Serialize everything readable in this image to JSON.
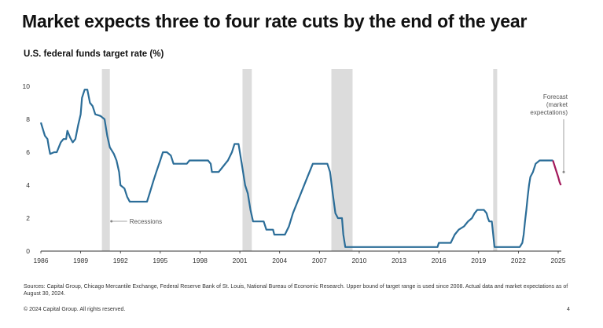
{
  "header": {
    "title": "Market expects three to four rate cuts by the end of the year",
    "subtitle": "U.S. federal funds target rate (%)"
  },
  "footer": {
    "source": "Sources: Capital Group, Chicago Mercantile Exchange, Federal Reserve Bank of St. Louis, National Bureau of Economic Research. Upper bound of target range is used since 2008. Actual data and market expectations as of August 30, 2024.",
    "copyright": "© 2024 Capital Group. All rights reserved.",
    "page_number": "4"
  },
  "colors": {
    "series_actual": "#2b6d98",
    "series_forecast": "#a3195b",
    "recession": "#dcdcdc",
    "axis": "#333333"
  },
  "chart_data": {
    "type": "line",
    "xlim": [
      1986,
      2025
    ],
    "ylim": [
      0,
      10
    ],
    "x_ticks": [
      "1986",
      "1989",
      "1992",
      "1995",
      "1998",
      "2001",
      "2004",
      "2007",
      "2010",
      "2013",
      "2016",
      "2019",
      "2022",
      "2025"
    ],
    "y_ticks": [
      "0",
      "2",
      "4",
      "6",
      "8",
      "10"
    ],
    "grid": false,
    "recessions": [
      [
        1990.6,
        1991.2
      ],
      [
        2001.2,
        2001.9
      ],
      [
        2007.9,
        2009.5
      ],
      [
        2020.1,
        2020.4
      ]
    ],
    "annotations": {
      "recessions_label": "Recessions",
      "forecast_label": "Forecast (market expectations)"
    },
    "series": [
      {
        "key": "actual",
        "points": [
          [
            1986.0,
            7.8
          ],
          [
            1986.3,
            7.0
          ],
          [
            1986.5,
            6.8
          ],
          [
            1986.6,
            6.3
          ],
          [
            1986.7,
            5.9
          ],
          [
            1987.0,
            6.0
          ],
          [
            1987.2,
            6.0
          ],
          [
            1987.5,
            6.6
          ],
          [
            1987.7,
            6.8
          ],
          [
            1987.9,
            6.8
          ],
          [
            1988.0,
            7.3
          ],
          [
            1988.2,
            6.9
          ],
          [
            1988.4,
            6.6
          ],
          [
            1988.6,
            6.8
          ],
          [
            1988.8,
            7.6
          ],
          [
            1989.0,
            8.3
          ],
          [
            1989.1,
            9.3
          ],
          [
            1989.3,
            9.8
          ],
          [
            1989.5,
            9.8
          ],
          [
            1989.7,
            9.0
          ],
          [
            1989.9,
            8.8
          ],
          [
            1990.1,
            8.3
          ],
          [
            1990.5,
            8.2
          ],
          [
            1990.8,
            8.0
          ],
          [
            1991.0,
            7.0
          ],
          [
            1991.2,
            6.3
          ],
          [
            1991.5,
            5.9
          ],
          [
            1991.7,
            5.5
          ],
          [
            1991.9,
            4.8
          ],
          [
            1992.0,
            4.0
          ],
          [
            1992.3,
            3.8
          ],
          [
            1992.5,
            3.3
          ],
          [
            1992.7,
            3.0
          ],
          [
            1994.0,
            3.0
          ],
          [
            1994.2,
            3.5
          ],
          [
            1994.5,
            4.3
          ],
          [
            1994.7,
            4.8
          ],
          [
            1995.0,
            5.5
          ],
          [
            1995.2,
            6.0
          ],
          [
            1995.5,
            6.0
          ],
          [
            1995.8,
            5.8
          ],
          [
            1996.0,
            5.3
          ],
          [
            1997.0,
            5.3
          ],
          [
            1997.2,
            5.5
          ],
          [
            1998.6,
            5.5
          ],
          [
            1998.8,
            5.3
          ],
          [
            1998.9,
            4.8
          ],
          [
            1999.4,
            4.8
          ],
          [
            1999.6,
            5.0
          ],
          [
            1999.9,
            5.3
          ],
          [
            2000.1,
            5.5
          ],
          [
            2000.4,
            6.0
          ],
          [
            2000.6,
            6.5
          ],
          [
            2000.9,
            6.5
          ],
          [
            2001.0,
            6.0
          ],
          [
            2001.2,
            5.0
          ],
          [
            2001.4,
            4.0
          ],
          [
            2001.6,
            3.5
          ],
          [
            2001.8,
            2.5
          ],
          [
            2002.0,
            1.8
          ],
          [
            2002.8,
            1.8
          ],
          [
            2003.0,
            1.3
          ],
          [
            2003.5,
            1.3
          ],
          [
            2003.6,
            1.0
          ],
          [
            2004.4,
            1.0
          ],
          [
            2004.7,
            1.5
          ],
          [
            2005.0,
            2.3
          ],
          [
            2005.5,
            3.3
          ],
          [
            2006.0,
            4.3
          ],
          [
            2006.5,
            5.3
          ],
          [
            2007.6,
            5.3
          ],
          [
            2007.8,
            4.8
          ],
          [
            2008.0,
            3.5
          ],
          [
            2008.2,
            2.3
          ],
          [
            2008.4,
            2.0
          ],
          [
            2008.7,
            2.0
          ],
          [
            2008.8,
            1.0
          ],
          [
            2008.95,
            0.25
          ],
          [
            2015.9,
            0.25
          ],
          [
            2016.0,
            0.5
          ],
          [
            2016.9,
            0.5
          ],
          [
            2017.2,
            1.0
          ],
          [
            2017.5,
            1.3
          ],
          [
            2017.9,
            1.5
          ],
          [
            2018.2,
            1.8
          ],
          [
            2018.5,
            2.0
          ],
          [
            2018.7,
            2.3
          ],
          [
            2018.9,
            2.5
          ],
          [
            2019.4,
            2.5
          ],
          [
            2019.6,
            2.3
          ],
          [
            2019.7,
            2.0
          ],
          [
            2019.8,
            1.8
          ],
          [
            2020.0,
            1.8
          ],
          [
            2020.2,
            0.25
          ],
          [
            2022.1,
            0.25
          ],
          [
            2022.3,
            0.5
          ],
          [
            2022.4,
            1.0
          ],
          [
            2022.5,
            1.8
          ],
          [
            2022.6,
            2.5
          ],
          [
            2022.7,
            3.3
          ],
          [
            2022.8,
            4.0
          ],
          [
            2022.9,
            4.5
          ],
          [
            2023.1,
            4.8
          ],
          [
            2023.3,
            5.3
          ],
          [
            2023.6,
            5.5
          ],
          [
            2024.6,
            5.5
          ]
        ]
      },
      {
        "key": "forecast",
        "points": [
          [
            2024.6,
            5.5
          ],
          [
            2024.8,
            5.0
          ],
          [
            2025.0,
            4.5
          ],
          [
            2025.1,
            4.2
          ],
          [
            2025.2,
            4.0
          ]
        ]
      }
    ]
  }
}
